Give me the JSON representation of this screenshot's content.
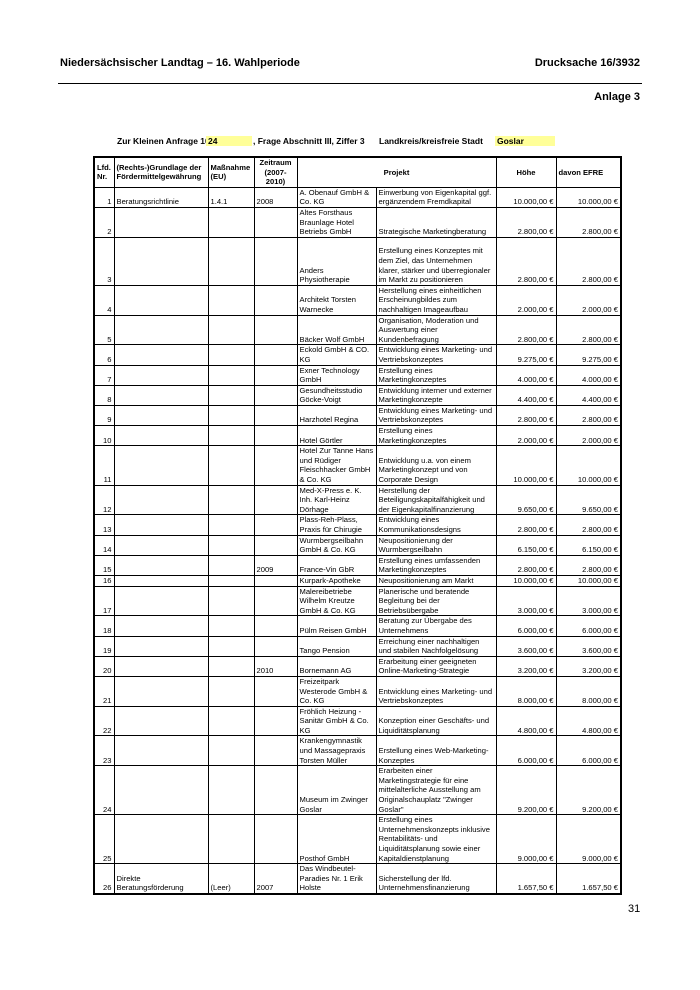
{
  "header": {
    "left": "Niedersächsischer Landtag – 16. Wahlperiode",
    "right": "Drucksache 16/3932",
    "annex": "Anlage 3"
  },
  "subheader": {
    "query_label": "Zur Kleinen Anfrage 10",
    "query_number": "24",
    "question": ", Frage Abschnitt III, Ziffer 3",
    "district_label": "Landkreis/kreisfreie Stadt",
    "district": "Goslar"
  },
  "highlight_color": "#ffff99",
  "table": {
    "columns": [
      "Lfd. Nr.",
      "(Rechts-)Grundlage der Fördermittelgewährung",
      "Maßnahme (EU)",
      "Zeitraum (2007-2010)",
      "Projekt",
      "Höhe",
      "davon EFRE"
    ],
    "rows": [
      [
        "1",
        "Beratungsrichtlinie",
        "1.4.1",
        "2008",
        "A. Obenauf GmbH & Co. KG",
        "Einwerbung von Eigenkapital ggf. ergänzendem Fremdkapital",
        "10.000,00 €",
        "10.000,00 €"
      ],
      [
        "2",
        "",
        "",
        "",
        "Altes Forsthaus Braunlage Hotel Betriebs GmbH",
        "Strategische Marketingberatung",
        "2.800,00 €",
        "2.800,00 €"
      ],
      [
        "3",
        "",
        "",
        "",
        "Anders Physiotherapie",
        "Erstellung eines Konzeptes mit dem Ziel, das Unternehmen klarer, stärker und überregionaler im Markt zu positionieren",
        "2.800,00 €",
        "2.800,00 €"
      ],
      [
        "4",
        "",
        "",
        "",
        "Architekt Torsten Warnecke",
        "Herstellung eines einheitlichen Erscheinungbildes zum nachhaltigen Imageaufbau",
        "2.000,00 €",
        "2.000,00 €"
      ],
      [
        "5",
        "",
        "",
        "",
        "Bäcker Wolf GmbH",
        "Organisation, Moderation und Auswertung einer Kundenbefragung",
        "2.800,00 €",
        "2.800,00 €"
      ],
      [
        "6",
        "",
        "",
        "",
        "Eckold GmbH & CO. KG",
        "Entwicklung eines Marketing- und Vertriebskonzeptes",
        "9.275,00 €",
        "9.275,00 €"
      ],
      [
        "7",
        "",
        "",
        "",
        "Exner Technology GmbH",
        "Erstellung  eines Marketingkonzeptes",
        "4.000,00 €",
        "4.000,00 €"
      ],
      [
        "8",
        "",
        "",
        "",
        "Gesundheitsstudio Göcke-Voigt",
        "Entwicklung interner und externer Marketingkonzepte",
        "4.400,00 €",
        "4.400,00 €"
      ],
      [
        "9",
        "",
        "",
        "",
        "Harzhotel Regina",
        "Entwicklung eines Marketing- und Vertriebskonzeptes",
        "2.800,00 €",
        "2.800,00 €"
      ],
      [
        "10",
        "",
        "",
        "",
        "Hotel Görtler",
        "Erstellung eines Marketingkonzeptes",
        "2.000,00 €",
        "2.000,00 €"
      ],
      [
        "11",
        "",
        "",
        "",
        "Hotel Zur Tanne Hans und Rüdiger Fleischhacker GmbH & Co. KG",
        "Entwicklung u.a. von einem Marketingkonzept und von Corporate Design",
        "10.000,00 €",
        "10.000,00 €"
      ],
      [
        "12",
        "",
        "",
        "",
        "Med-X-Press e. K. Inh. Karl-Heinz Dörhage",
        "Herstellung der Beteiligungskapitalfähigkeit und der Eigenkapitalfinanzierung",
        "9.650,00 €",
        "9.650,00 €"
      ],
      [
        "13",
        "",
        "",
        "",
        "Plass-Reh-Plass, Praxis für Chirugie",
        "Entwicklung eines Kommunikationsdesigns",
        "2.800,00 €",
        "2.800,00 €"
      ],
      [
        "14",
        "",
        "",
        "",
        "Wurmbergseilbahn GmbH & Co. KG",
        "Neupositionierung der Wurmbergseilbahn",
        "6.150,00 €",
        "6.150,00 €"
      ],
      [
        "15",
        "",
        "",
        "2009",
        "France-Vin GbR",
        "Erstellung eines umfassenden Marketingkonzeptes",
        "2.800,00 €",
        "2.800,00 €"
      ],
      [
        "16",
        "",
        "",
        "",
        "Kurpark-Apotheke",
        "Neupositionierung am Markt",
        "10.000,00 €",
        "10.000,00 €"
      ],
      [
        "17",
        "",
        "",
        "",
        "Malereibetriebe Wilhelm Kreutze GmbH & Co. KG",
        "Planerische und beratende Begleitung bei der Betriebsübergabe",
        "3.000,00 €",
        "3.000,00 €"
      ],
      [
        "18",
        "",
        "",
        "",
        "Pülm Reisen GmbH",
        "Beratung zur Übergabe des Unternehmens",
        "6.000,00 €",
        "6.000,00 €"
      ],
      [
        "19",
        "",
        "",
        "",
        "Tango Pension",
        "Erreichung einer nachhaltigen und stabilen Nachfolgelösung",
        "3.600,00 €",
        "3.600,00 €"
      ],
      [
        "20",
        "",
        "",
        "2010",
        "Bornemann AG",
        "Erarbeitung einer geeigneten Online-Marketing-Strategie",
        "3.200,00 €",
        "3.200,00 €"
      ],
      [
        "21",
        "",
        "",
        "",
        "Freizeitpark Westerode GmbH & Co. KG",
        "Entwicklung eines Marketing- und Vertriebskonzeptes",
        "8.000,00 €",
        "8.000,00 €"
      ],
      [
        "22",
        "",
        "",
        "",
        "Fröhlich Heizung - Sanitär GmbH & Co. KG",
        "Konzeption einer Geschäfts- und Liquiditätsplanung",
        "4.800,00 €",
        "4.800,00 €"
      ],
      [
        "23",
        "",
        "",
        "",
        "Krankengymnastik und Massagepraxis Torsten Müller",
        "Erstellung eines Web-Marketing-Konzeptes",
        "6.000,00 €",
        "6.000,00 €"
      ],
      [
        "24",
        "",
        "",
        "",
        "Museum im Zwinger Goslar",
        "Erarbeiten einer Marketingstrategie für eine mittelalterliche Ausstellung am Originalschauplatz \"Zwinger Goslar\"",
        "9.200,00 €",
        "9.200,00 €"
      ],
      [
        "25",
        "",
        "",
        "",
        "Posthof GmbH",
        "Erstellung eines Unternehmenskonzepts inklusive Rentabilitäts- und Liquiditätsplanung sowie einer Kapitaldienstplanung",
        "9.000,00 €",
        "9.000,00 €"
      ],
      [
        "26",
        "Direkte Beratungsförderung",
        "(Leer)",
        "2007",
        "Das Windbeutel-Paradies Nr. 1 Erik Holste",
        "Sicherstellung der lfd. Unternehmensfinanzierung",
        "1.657,50 €",
        "1.657,50 €"
      ]
    ]
  },
  "page_number": "31"
}
